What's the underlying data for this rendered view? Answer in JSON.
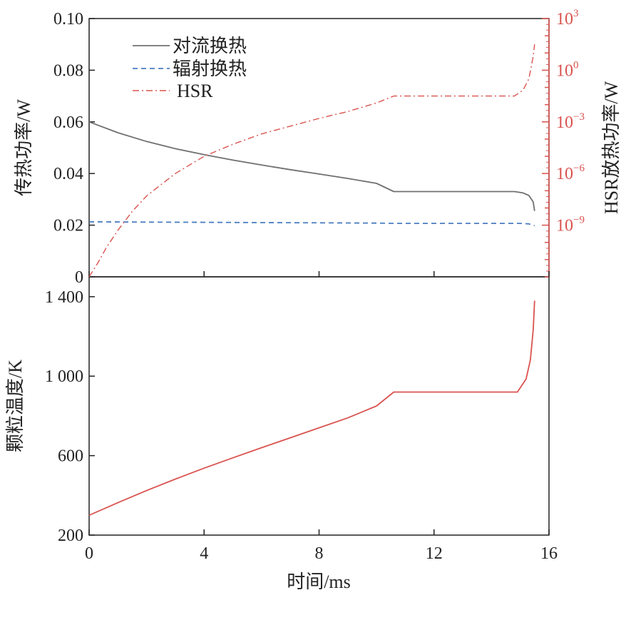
{
  "chart_data": [
    {
      "type": "line",
      "panel": "top",
      "xlabel": "",
      "ylabel": "传热功率/W",
      "y2label": "HSR放热功率/W",
      "xlim": [
        0,
        16
      ],
      "ylim": [
        0,
        0.1
      ],
      "y2lim_log10": [
        -12,
        3
      ],
      "y2scale": "log",
      "yticks": [
        "0",
        "0.02",
        "0.04",
        "0.06",
        "0.08",
        "0.10"
      ],
      "y2ticks": [
        {
          "base": "10",
          "exp": "−9",
          "log10": -9
        },
        {
          "base": "10",
          "exp": "−6",
          "log10": -6
        },
        {
          "base": "10",
          "exp": "−3",
          "log10": -3
        },
        {
          "base": "10",
          "exp": "0",
          "log10": 0
        },
        {
          "base": "10",
          "exp": "3",
          "log10": 3
        }
      ],
      "legend_position": "top-left",
      "series": [
        {
          "name": "对流换热",
          "axis": "left",
          "color": "#707070",
          "style": "solid",
          "x": [
            0,
            1,
            2,
            3,
            4,
            5,
            6,
            7,
            8,
            9,
            10,
            10.6,
            11,
            12,
            13,
            14,
            14.8,
            15.1,
            15.3,
            15.45,
            15.5
          ],
          "y": [
            0.06,
            0.0558,
            0.0524,
            0.0496,
            0.0473,
            0.0452,
            0.0433,
            0.0415,
            0.0398,
            0.0381,
            0.0362,
            0.033,
            0.033,
            0.033,
            0.033,
            0.033,
            0.033,
            0.0325,
            0.0315,
            0.029,
            0.0255
          ]
        },
        {
          "name": "辐射换热",
          "axis": "left",
          "color": "#4a7dbf",
          "style": "dashed",
          "x": [
            0,
            2,
            4,
            6,
            8,
            10,
            10.6,
            12,
            14,
            15,
            15.3,
            15.5
          ],
          "y": [
            0.0213,
            0.0212,
            0.0211,
            0.021,
            0.0209,
            0.0208,
            0.0207,
            0.0207,
            0.0207,
            0.0207,
            0.0205,
            0.0198
          ]
        },
        {
          "name": "HSR",
          "axis": "right",
          "color": "#d9534f",
          "style": "dashdot",
          "x": [
            0,
            0.3,
            0.6,
            1,
            1.5,
            2,
            3,
            4,
            5,
            6,
            7,
            8,
            9,
            10,
            10.6,
            11,
            12,
            13,
            14,
            14.8,
            15.1,
            15.3,
            15.45,
            15.5
          ],
          "log10_y": [
            -12,
            -11.2,
            -10.3,
            -9.3,
            -8.2,
            -7.3,
            -6,
            -5,
            -4.3,
            -3.7,
            -3.25,
            -2.8,
            -2.4,
            -1.9,
            -1.5,
            -1.5,
            -1.5,
            -1.5,
            -1.5,
            -1.5,
            -1.15,
            -0.5,
            0.8,
            1.5
          ]
        }
      ]
    },
    {
      "type": "line",
      "panel": "bottom",
      "xlabel": "时间/ms",
      "ylabel": "颗粒温度/K",
      "xlim": [
        0,
        16
      ],
      "ylim": [
        200,
        1500
      ],
      "xticks": [
        "0",
        "4",
        "8",
        "12",
        "16"
      ],
      "yticks": [
        {
          "label": "200",
          "value": 200
        },
        {
          "label": "600",
          "value": 600
        },
        {
          "label": "1 000",
          "value": 1000
        },
        {
          "label": "1 400",
          "value": 1400
        }
      ],
      "series": [
        {
          "name": "",
          "color": "#d9534f",
          "style": "solid",
          "x": [
            0,
            1,
            2,
            3,
            4,
            5,
            6,
            7,
            8,
            9,
            10,
            10.6,
            11,
            12,
            13,
            14,
            14.9,
            15.2,
            15.35,
            15.45,
            15.5
          ],
          "y": [
            300,
            363,
            424,
            482,
            537,
            589,
            640,
            690,
            740,
            790,
            850,
            920,
            920,
            920,
            920,
            920,
            920,
            985,
            1080,
            1230,
            1380
          ]
        }
      ]
    }
  ]
}
